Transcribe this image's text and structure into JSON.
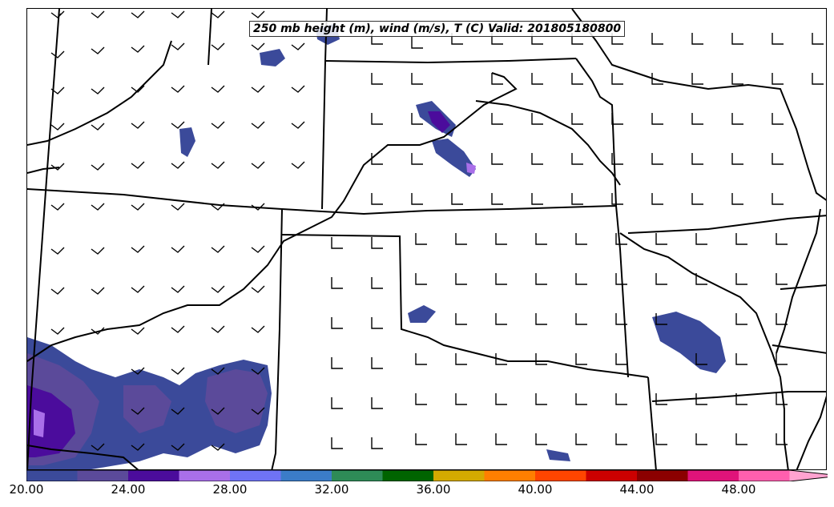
{
  "title": "250 mb height (m), wind (m/s), T (C) Valid: 201805180800",
  "colorbar": {
    "tick_labels": [
      "20.00",
      "24.00",
      "28.00",
      "32.00",
      "36.00",
      "40.00",
      "44.00",
      "48.00"
    ],
    "colors": [
      "#3b4a9a",
      "#5b4a9a",
      "#4b0c9c",
      "#a96fe9",
      "#6f73f5",
      "#3b7cc8",
      "#2e8b57",
      "#006400",
      "#d4aa00",
      "#ff7f00",
      "#ff4500",
      "#cc0000",
      "#8b0000",
      "#e0137a",
      "#ff5fae",
      "#ffa3d0"
    ]
  }
}
